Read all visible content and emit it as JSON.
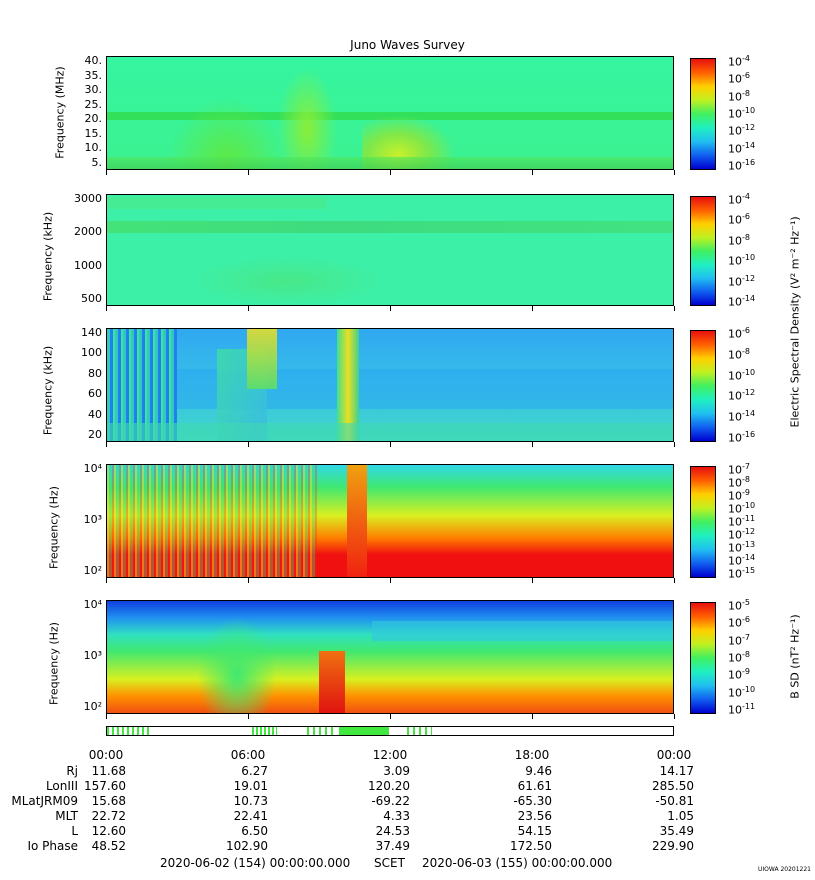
{
  "chart_data": {
    "type": "heatmap",
    "title": "Juno Waves Survey",
    "panels": [
      {
        "ylabel": "Frequency (MHz)",
        "yticks": [
          "40.",
          "35.",
          "30.",
          "25.",
          "20.",
          "15.",
          "10.",
          "5."
        ],
        "colorbar_ticks": [
          "-4",
          "-6",
          "-8",
          "-10",
          "-12",
          "-14",
          "-16"
        ],
        "colorbar_label": ""
      },
      {
        "ylabel": "Frequency (kHz)",
        "yticks": [
          "3000",
          "2000",
          "1000",
          "500"
        ],
        "colorbar_ticks": [
          "-4",
          "-6",
          "-8",
          "-10",
          "-12",
          "-14"
        ],
        "colorbar_label": "Electric Spectral Density (V² m⁻² Hz⁻¹)"
      },
      {
        "ylabel": "Frequency (kHz)",
        "yticks": [
          "140",
          "100",
          "80",
          "60",
          "40",
          "20"
        ],
        "colorbar_ticks": [
          "-6",
          "-8",
          "-10",
          "-12",
          "-14",
          "-16"
        ],
        "colorbar_label": ""
      },
      {
        "ylabel": "Frequency (Hz)",
        "yticks": [
          "10⁴",
          "10³",
          "10²"
        ],
        "colorbar_ticks": [
          "-7",
          "-8",
          "-9",
          "-10",
          "-11",
          "-12",
          "-13",
          "-14",
          "-15"
        ],
        "colorbar_label": ""
      },
      {
        "ylabel": "Frequency (Hz)",
        "yticks": [
          "10⁴",
          "10³",
          "10²"
        ],
        "colorbar_ticks": [
          "-5",
          "-6",
          "-7",
          "-8",
          "-9",
          "-10",
          "-11"
        ],
        "colorbar_label": "B SD (nT² Hz⁻¹)"
      }
    ],
    "colorbar_base": "10",
    "x_ticks": [
      "00:00",
      "06:00",
      "12:00",
      "18:00",
      "00:00"
    ],
    "ephemeris": [
      {
        "label": "Rj",
        "values": [
          "11.68",
          "6.27",
          "3.09",
          "9.46",
          "14.17"
        ]
      },
      {
        "label": "LonIII",
        "values": [
          "157.60",
          "19.01",
          "120.20",
          "61.61",
          "285.50"
        ]
      },
      {
        "label": "MLatJRM09",
        "values": [
          "15.68",
          "10.73",
          "-69.22",
          "-65.30",
          "-50.81"
        ]
      },
      {
        "label": "MLT",
        "values": [
          "22.72",
          "22.41",
          "4.33",
          "23.56",
          "1.05"
        ]
      },
      {
        "label": "L",
        "values": [
          "12.60",
          "6.50",
          "24.53",
          "54.15",
          "35.49"
        ]
      },
      {
        "label": "Io Phase",
        "values": [
          "48.52",
          "102.90",
          "37.49",
          "172.50",
          "229.90"
        ]
      }
    ],
    "footer": {
      "start": "2020-06-02 (154) 00:00:00.000",
      "scet": "SCET",
      "end": "2020-06-03 (155) 00:00:00.000"
    },
    "stamp": "UIOWA 20201221"
  }
}
